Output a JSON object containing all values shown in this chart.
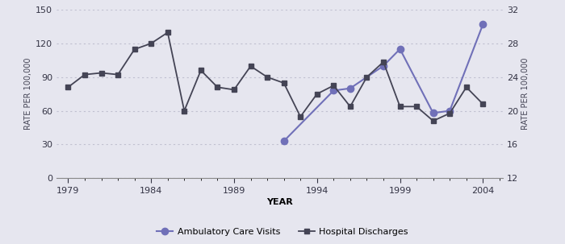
{
  "hosp_years": [
    1979,
    1980,
    1981,
    1982,
    1983,
    1984,
    1985,
    1986,
    1987,
    1988,
    1989,
    1990,
    1991,
    1992,
    1993,
    1994,
    1995,
    1996,
    1997,
    1998,
    1999,
    2000,
    2001,
    2002,
    2003,
    2004
  ],
  "hosp_right_values": [
    22.8,
    24.3,
    24.5,
    24.3,
    27.3,
    28.0,
    29.3,
    20.0,
    24.8,
    22.8,
    22.5,
    25.3,
    24.0,
    23.3,
    19.3,
    22.0,
    23.0,
    20.5,
    24.0,
    25.8,
    20.5,
    20.5,
    18.8,
    19.7,
    22.8,
    20.8
  ],
  "amb_years": [
    1992,
    1995,
    1996,
    1998,
    1999,
    2001,
    2002,
    2004
  ],
  "amb_values": [
    33,
    78,
    80,
    100,
    115,
    58,
    60,
    137
  ],
  "left_ylim": [
    0,
    150
  ],
  "right_ylim": [
    12,
    32
  ],
  "left_yticks": [
    0,
    30,
    60,
    90,
    120,
    150
  ],
  "right_yticks": [
    12,
    16,
    20,
    24,
    28,
    32
  ],
  "xlim": [
    1978.3,
    2005.2
  ],
  "xticks": [
    1979,
    1984,
    1989,
    1994,
    1999,
    2004
  ],
  "xlabel": "YEAR",
  "left_ylabel": "RATE PER 100,000",
  "right_ylabel": "RATE PER 100,000",
  "amb_color": "#7070b8",
  "hosp_color": "#444455",
  "bg_color": "#e6e6ef",
  "grid_color": "#c0c0d0",
  "legend_amb": "Ambulatory Care Visits",
  "legend_hosp": "Hospital Discharges",
  "axis_fontsize": 7,
  "tick_fontsize": 8,
  "legend_fontsize": 8
}
